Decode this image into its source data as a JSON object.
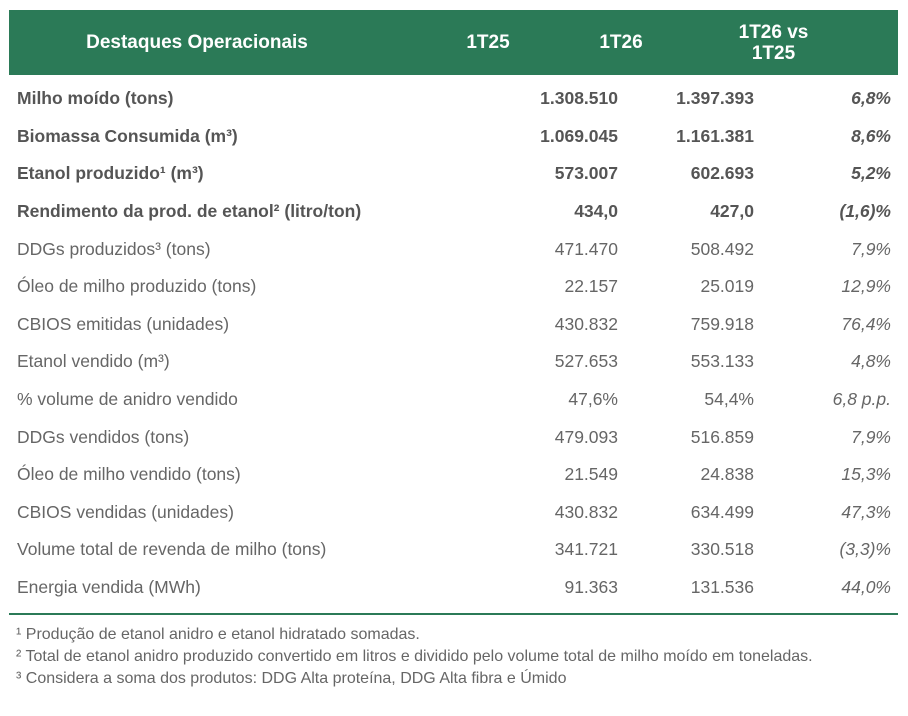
{
  "header": {
    "label": "Destaques Operacionais",
    "col1": "1T25",
    "col2": "1T26",
    "col3_line1": "1T26 vs",
    "col3_line2": "1T25"
  },
  "rows": [
    {
      "label": "Milho moído (tons)",
      "v1": "1.308.510",
      "v2": "1.397.393",
      "v3": "6,8%",
      "bold": true
    },
    {
      "label": "Biomassa Consumida (m³)",
      "v1": "1.069.045",
      "v2": "1.161.381",
      "v3": "8,6%",
      "bold": true
    },
    {
      "label": "Etanol produzido¹ (m³)",
      "v1": "573.007",
      "v2": "602.693",
      "v3": "5,2%",
      "bold": true
    },
    {
      "label": "Rendimento da prod. de etanol² (litro/ton)",
      "v1": "434,0",
      "v2": "427,0",
      "v3": "(1,6)%",
      "bold": true
    },
    {
      "label": "DDGs produzidos³ (tons)",
      "v1": "471.470",
      "v2": "508.492",
      "v3": "7,9%",
      "bold": false
    },
    {
      "label": "Óleo de milho produzido (tons)",
      "v1": "22.157",
      "v2": "25.019",
      "v3": "12,9%",
      "bold": false
    },
    {
      "label": "CBIOS emitidas (unidades)",
      "v1": "430.832",
      "v2": "759.918",
      "v3": "76,4%",
      "bold": false
    },
    {
      "label": "Etanol vendido (m³)",
      "v1": "527.653",
      "v2": "553.133",
      "v3": "4,8%",
      "bold": false
    },
    {
      "label": "% volume de anidro vendido",
      "v1": "47,6%",
      "v2": "54,4%",
      "v3": "6,8 p.p.",
      "bold": false
    },
    {
      "label": "DDGs vendidos (tons)",
      "v1": "479.093",
      "v2": "516.859",
      "v3": "7,9%",
      "bold": false
    },
    {
      "label": "Óleo de milho vendido (tons)",
      "v1": "21.549",
      "v2": "24.838",
      "v3": "15,3%",
      "bold": false
    },
    {
      "label": "CBIOS vendidas (unidades)",
      "v1": "430.832",
      "v2": "634.499",
      "v3": "47,3%",
      "bold": false
    },
    {
      "label": "Volume total de revenda de milho (tons)",
      "v1": "341.721",
      "v2": "330.518",
      "v3": "(3,3)%",
      "bold": false
    },
    {
      "label": "Energia vendida (MWh)",
      "v1": "91.363",
      "v2": "131.536",
      "v3": "44,0%",
      "bold": false
    }
  ],
  "notes": [
    "¹ Produção de etanol anidro e etanol hidratado somadas.",
    "² Total de etanol anidro produzido convertido em litros e dividido pelo volume total de milho moído em toneladas.",
    "³ Considera a soma dos produtos: DDG Alta proteína, DDG Alta fibra e Úmido"
  ],
  "colors": {
    "header_bg": "#2b7a57",
    "header_text": "#ffffff",
    "body_text": "#555555"
  }
}
